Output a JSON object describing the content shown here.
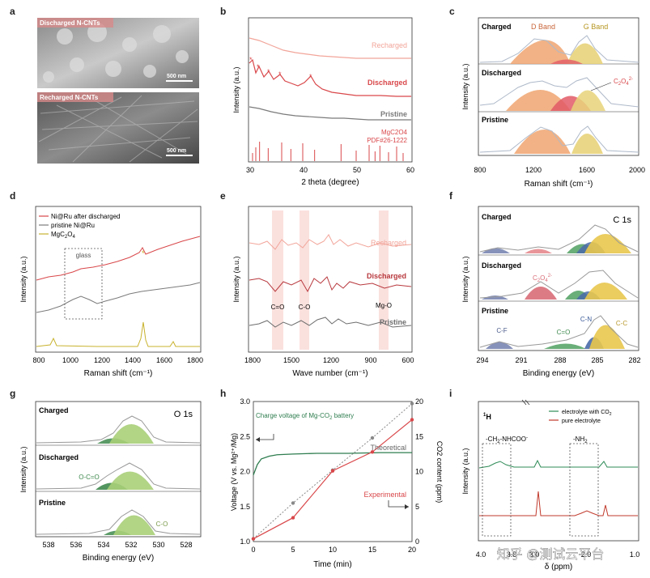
{
  "figure": {
    "panel_labels": [
      "a",
      "b",
      "c",
      "d",
      "e",
      "f",
      "g",
      "h",
      "i"
    ],
    "watermark": "知乎 @测试云平台"
  },
  "panel_a": {
    "top_label": "Discharged N-CNTs",
    "top_scale": "500 nm",
    "bottom_label": "Recharged N-CNTs",
    "bottom_scale": "500 nm"
  },
  "chart_data": [
    {
      "panel": "b",
      "type": "line",
      "xlabel": "2 theta (degree)",
      "ylabel": "Intensity (a.u.)",
      "xlim": [
        30,
        60
      ],
      "x_ticks": [
        "30",
        "40",
        "50",
        "60"
      ],
      "series": [
        {
          "name": "Recharged",
          "color": "#f2a59a"
        },
        {
          "name": "Discharged",
          "color": "#d9474a"
        },
        {
          "name": "Pristine",
          "color": "#7b7b7b"
        }
      ],
      "annotations": [
        "MgC2O4",
        "PDF#26-1222"
      ],
      "reference_peaks_deg": [
        30.6,
        31.2,
        31.9,
        33.5,
        36.0,
        37.7,
        39.9,
        42.1,
        47.0,
        49.8,
        52.2,
        53.3,
        54.2,
        55.8,
        57.3,
        58.5
      ],
      "markers": "stars on Discharged curve"
    },
    {
      "panel": "c",
      "type": "area",
      "xlabel": "Raman shift (cm⁻¹)",
      "ylabel": "Intensity (a.u.)",
      "xlim": [
        800,
        2000
      ],
      "x_ticks": [
        "800",
        "1200",
        "1600",
        "2000"
      ],
      "panels": [
        "Charged",
        "Discharged",
        "Pristine"
      ],
      "labels": [
        "D Band",
        "G Band",
        "C2O4 2-"
      ],
      "peaks_cm1": {
        "D": 1350,
        "G": 1590,
        "C2O4": 1480
      }
    },
    {
      "panel": "d",
      "type": "line",
      "xlabel": "Raman shift (cm⁻¹)",
      "ylabel": "Intensity (a.u.)",
      "xlim": [
        800,
        1850
      ],
      "x_ticks": [
        "800",
        "1000",
        "1200",
        "1400",
        "1600",
        "1800"
      ],
      "series": [
        {
          "name": "Ni@Ru after discharged",
          "color": "#d9474a"
        },
        {
          "name": "pristine Ni@Ru",
          "color": "#7b7b7b"
        },
        {
          "name": "MgC2O4",
          "color": "#c8b22e"
        }
      ],
      "annotations": [
        "glass"
      ],
      "peaks_cm1": [
        910,
        1470,
        1650
      ]
    },
    {
      "panel": "e",
      "type": "line",
      "xlabel": "Wave number (cm⁻¹)",
      "ylabel": "Intensity (a.u.)",
      "xlim": [
        1800,
        600
      ],
      "x_ticks": [
        "1800",
        "1500",
        "1200",
        "900",
        "600"
      ],
      "series": [
        {
          "name": "Recharged",
          "color": "#f2a59a"
        },
        {
          "name": "Discharged",
          "color": "#b8383d"
        },
        {
          "name": "Pristine",
          "color": "#6d6d6d"
        }
      ],
      "annotations": [
        "C=O",
        "C-O",
        "Mg-O"
      ]
    },
    {
      "panel": "f",
      "type": "area",
      "title": "C 1s",
      "xlabel": "Binding energy (eV)",
      "ylabel": "Intensity (a.u.)",
      "xlim": [
        294,
        282
      ],
      "x_ticks": [
        "294",
        "291",
        "288",
        "285",
        "282"
      ],
      "panels": [
        "Charged",
        "Discharged",
        "Pristine"
      ],
      "labels": [
        "C2O4 2-",
        "C-F",
        "C=O",
        "C-N",
        "C-C"
      ]
    },
    {
      "panel": "g",
      "type": "area",
      "title": "O 1s",
      "xlabel": "Binding energy (eV)",
      "ylabel": "Intensity (a.u.)",
      "xlim": [
        539,
        527
      ],
      "x_ticks": [
        "538",
        "536",
        "534",
        "532",
        "530",
        "528"
      ],
      "panels": [
        "Charged",
        "Discharged",
        "Pristine"
      ],
      "labels": [
        "O-C=O",
        "C-O"
      ]
    },
    {
      "panel": "h",
      "type": "line",
      "xlabel": "Time (min)",
      "ylabel": "Voltage (V vs. Mg²⁺/Mg)",
      "y2label": "CO2 content (ppm)",
      "xlim": [
        0,
        20
      ],
      "ylim": [
        1.0,
        3.0
      ],
      "y2lim": [
        0,
        20
      ],
      "x_ticks": [
        "0",
        "5",
        "10",
        "15",
        "20"
      ],
      "y_ticks": [
        "1.0",
        "1.5",
        "2.0",
        "2.5",
        "3.0"
      ],
      "y2_ticks": [
        "0",
        "5",
        "10",
        "15",
        "20"
      ],
      "annotation": "Charge voltage of Mg-CO2 battery",
      "series": [
        {
          "name": "Theoretical",
          "x": [
            0,
            5,
            10,
            15,
            20
          ],
          "y2": [
            0.4,
            5.5,
            10.2,
            14.8,
            19.7
          ],
          "color": "#888888",
          "style": "dotted"
        },
        {
          "name": "Experimental",
          "x": [
            0,
            5,
            10,
            15,
            20
          ],
          "y2": [
            0.4,
            3.4,
            10.1,
            12.8,
            17.4
          ],
          "color": "#d9474a"
        },
        {
          "name": "Charge voltage",
          "x": [
            0,
            0.5,
            1,
            2,
            3,
            5,
            8,
            12,
            16,
            20
          ],
          "y": [
            1.95,
            2.1,
            2.18,
            2.22,
            2.24,
            2.25,
            2.26,
            2.26,
            2.27,
            2.27
          ],
          "color": "#2e7d4f"
        }
      ]
    },
    {
      "panel": "i",
      "type": "line",
      "title": "1H",
      "xlabel": "δ (ppm)",
      "ylabel": "Intensity (a.u.)",
      "x_ticks": [
        "4.0",
        "3.8",
        "3.0",
        "2.0",
        "1.0"
      ],
      "series": [
        {
          "name": "electrolyte with CO2",
          "color": "#2e8b57"
        },
        {
          "name": "pure electrolyte",
          "color": "#c0392b"
        }
      ],
      "annotations": [
        "-CH2-NHCOO-",
        "-NH2"
      ]
    }
  ]
}
